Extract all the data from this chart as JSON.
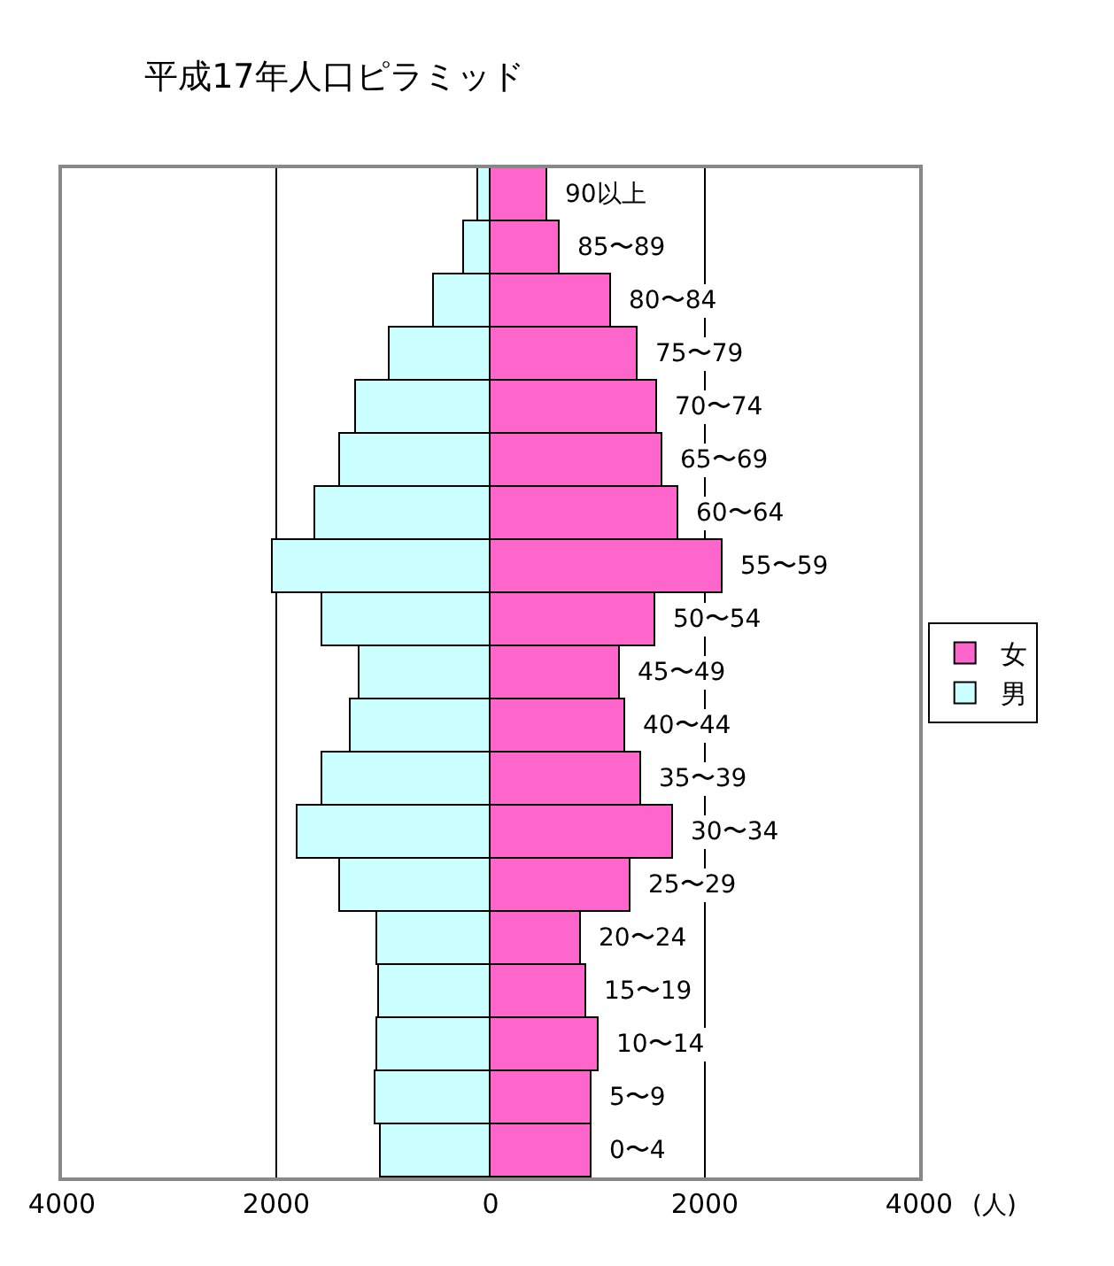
{
  "chart_data": {
    "type": "bar",
    "orientation": "horizontal",
    "stacked": true,
    "title": "平成17年人口ピラミッド",
    "xlabel": "(人)",
    "categories": [
      "90以上",
      "85〜89",
      "80〜84",
      "75〜79",
      "70〜74",
      "65〜69",
      "60〜64",
      "55〜59",
      "50〜54",
      "45〜49",
      "40〜44",
      "35〜39",
      "30〜34",
      "25〜29",
      "20〜24",
      "15〜19",
      "10〜14",
      "5〜9",
      "0〜4"
    ],
    "series": [
      {
        "name": "女",
        "color": "#ff66cc",
        "values": [
          530,
          640,
          1130,
          1370,
          1560,
          1600,
          1760,
          2160,
          1530,
          1200,
          1250,
          1410,
          1700,
          1300,
          850,
          900,
          1000,
          950,
          940
        ]
      },
      {
        "name": "男",
        "color": "#ccffff",
        "values": [
          -120,
          -240,
          -530,
          -950,
          -1260,
          -1400,
          -1640,
          -2040,
          -1570,
          -1230,
          -1310,
          -1570,
          -1800,
          -1400,
          -1060,
          -1040,
          -1050,
          -1080,
          -1020
        ]
      }
    ],
    "xlim": [
      -4000,
      4000
    ],
    "xticks": [
      {
        "value": -4000,
        "label": "4000"
      },
      {
        "value": -2000,
        "label": "2000"
      },
      0,
      2000,
      4000
    ],
    "grid": "x",
    "legend": "right"
  }
}
